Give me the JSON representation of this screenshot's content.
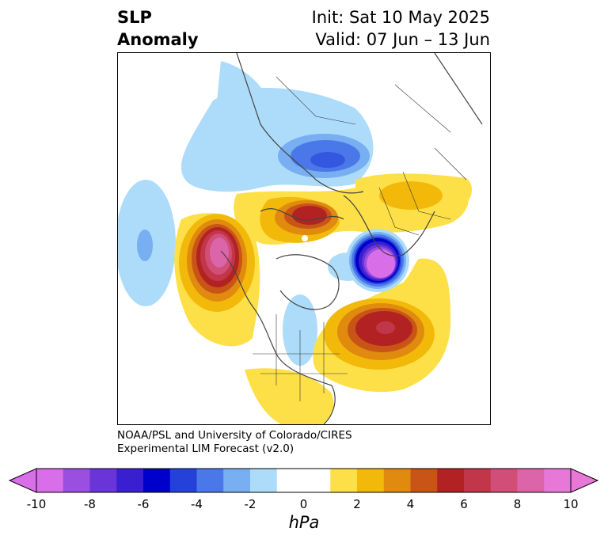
{
  "title": {
    "left_line1": "SLP",
    "left_line2": "Anomaly",
    "right_line1": "Init: Sat 10 May 2025",
    "right_line2": "Valid: 07 Jun – 13 Jun"
  },
  "credit": {
    "line1": "NOAA/PSL and University of Colorado/CIRES",
    "line2": "Experimental LIM Forecast (v2.0)"
  },
  "colorbar": {
    "unit": "hPa",
    "tick_labels": [
      "-10",
      "-8",
      "-6",
      "-4",
      "-2",
      "0",
      "2",
      "4",
      "6",
      "8",
      "10"
    ],
    "bins": [
      {
        "range": "-10 to -9",
        "color": "#d86ee8"
      },
      {
        "range": "-9 to -8",
        "color": "#9b4fe0"
      },
      {
        "range": "-8 to -7",
        "color": "#6a35d8"
      },
      {
        "range": "-7 to -6",
        "color": "#3a1fd0"
      },
      {
        "range": "-6 to -5",
        "color": "#0000cc"
      },
      {
        "range": "-5 to -4",
        "color": "#2442d9"
      },
      {
        "range": "-4 to -3",
        "color": "#4a78e8"
      },
      {
        "range": "-3 to -2",
        "color": "#78aef2"
      },
      {
        "range": "-2 to -1",
        "color": "#addcfa"
      },
      {
        "range": "-1 to 1",
        "color": "#ffffff"
      },
      {
        "range": "1 to 2",
        "color": "#fde047"
      },
      {
        "range": "2 to 3",
        "color": "#f2b90a"
      },
      {
        "range": "3 to 4",
        "color": "#e08a10"
      },
      {
        "range": "4 to 5",
        "color": "#c85516"
      },
      {
        "range": "5 to 6",
        "color": "#b22222"
      },
      {
        "range": "6 to 7",
        "color": "#c2364a"
      },
      {
        "range": "7 to 8",
        "color": "#d04e78"
      },
      {
        "range": "8 to 9",
        "color": "#dc64a8"
      },
      {
        "range": "9 to 10",
        "color": "#e878d8"
      }
    ],
    "extend_low_color": "#d86ee8",
    "extend_high_color": "#e878d8"
  },
  "map": {
    "projection": "north polar stereographic",
    "features": [
      {
        "name": "positive anomaly over Gulf of Alaska",
        "peak_hpa": 9
      },
      {
        "name": "positive anomaly over North Atlantic",
        "peak_hpa": 7
      },
      {
        "name": "positive anomaly over Barents Sea",
        "peak_hpa": 6
      },
      {
        "name": "negative anomaly over Eastern Europe",
        "peak_hpa": -10
      },
      {
        "name": "negative anomaly over Siberia",
        "peak_hpa": -4
      },
      {
        "name": "negative anomaly over North Pacific",
        "peak_hpa": -3
      }
    ]
  }
}
